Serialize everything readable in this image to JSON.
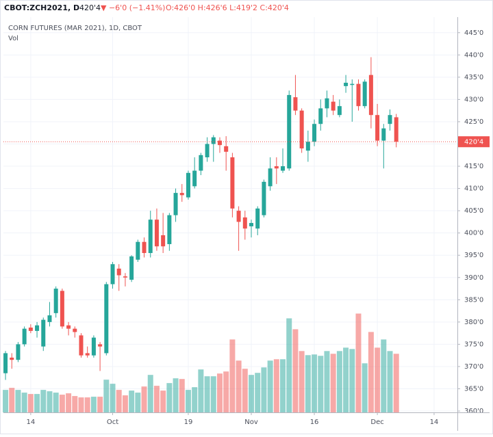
{
  "chart_data": {
    "type": "candlestick",
    "header": {
      "symbol": "CBOT:ZCH2021, D",
      "price": "420'4",
      "change": "▼ −6'0 (−1.41%)",
      "ohlc": "O:426'0 H:426'6 L:419'2 C:420'4"
    },
    "title": "CORN FUTURES (MAR 2021), 1D, CBOT",
    "volume_label": "Vol",
    "up_color": "#26a69a",
    "down_color": "#ef5350",
    "open": [
      368.5,
      372,
      371.5,
      375,
      378.75,
      378,
      374.5,
      380,
      382,
      387,
      379.25,
      378.5,
      377,
      373,
      372.5,
      375,
      373,
      388.5,
      392,
      390.25,
      389.5,
      394,
      398,
      395.5,
      403,
      399.5,
      397.5,
      404,
      409,
      408,
      410.5,
      414,
      417,
      420,
      420.75,
      419.5,
      417,
      405,
      403.5,
      401.5,
      401,
      404,
      410.5,
      415,
      414,
      414.5,
      430.5,
      427.5,
      418.5,
      420.5,
      424.5,
      428,
      429.5,
      426.5,
      433,
      433.25,
      433.5,
      428.5,
      435.5,
      426.5,
      420.75,
      424.5,
      426
    ],
    "high": [
      373.5,
      373,
      375.5,
      379,
      379.5,
      380,
      381,
      384.5,
      388,
      387.5,
      380,
      379,
      377.5,
      374.5,
      377,
      375.5,
      389,
      393.5,
      393,
      391,
      395,
      398.5,
      399,
      405,
      405.5,
      404.5,
      404.5,
      410,
      411,
      414,
      417,
      418,
      421.5,
      422,
      421.5,
      421.75,
      418,
      406,
      405,
      403,
      406,
      412,
      417,
      417,
      419,
      432,
      435.5,
      428,
      423,
      425.5,
      430,
      432,
      431,
      430,
      435.5,
      434.5,
      434.5,
      434.5,
      439.5,
      429,
      424.5,
      427.75,
      426.75
    ],
    "low": [
      367,
      369.5,
      371,
      374.5,
      377.5,
      376.5,
      373.5,
      379,
      381,
      378.5,
      377,
      376.5,
      372,
      372,
      372,
      369,
      372.5,
      387.5,
      387,
      388,
      389,
      393.5,
      394.5,
      394.5,
      396,
      395.5,
      396,
      402.5,
      407,
      407.5,
      410,
      413,
      416,
      416,
      418,
      414,
      403.5,
      396,
      398.5,
      399,
      399.5,
      403.5,
      409.5,
      411,
      413.5,
      414,
      426.5,
      418,
      416,
      419.5,
      423,
      426,
      426.5,
      426,
      431.5,
      425,
      427.5,
      428,
      423.5,
      419.5,
      414.5,
      423,
      419.25
    ],
    "close": [
      373,
      371.5,
      375,
      378.5,
      378,
      379.25,
      380.5,
      381.5,
      387.5,
      379,
      378.5,
      377.75,
      372.5,
      372.5,
      376.5,
      374.5,
      388.5,
      393,
      390.5,
      390,
      394.75,
      398,
      395.5,
      403,
      397,
      397,
      404,
      409,
      408.5,
      413.5,
      414,
      417.5,
      420,
      421.5,
      419.75,
      418.25,
      405.5,
      402.5,
      401,
      402.25,
      405.5,
      411.5,
      414.5,
      414.5,
      415,
      431,
      427.5,
      419,
      420.5,
      424.5,
      428,
      430.25,
      427.5,
      428.5,
      433.75,
      433.5,
      428.5,
      434,
      426.5,
      420.75,
      423.5,
      426.5,
      420.5
    ],
    "volume": [
      33,
      36,
      33,
      29,
      27,
      27,
      33,
      31,
      29,
      26,
      28,
      24,
      22,
      22,
      23,
      23,
      48,
      42,
      33,
      25,
      32,
      29,
      38,
      55,
      39,
      32,
      43,
      50,
      49,
      33,
      37,
      63,
      53,
      53,
      57,
      60,
      107,
      76,
      64,
      55,
      58,
      66,
      76,
      78,
      78,
      138,
      122,
      90,
      84,
      85,
      83,
      90,
      86,
      90,
      95,
      93,
      145,
      72,
      118,
      95,
      107,
      90,
      86
    ],
    "last_price": {
      "value": 420.5,
      "label": "420'4"
    },
    "xlim": [
      -0.33,
      71.7
    ],
    "xticks": [
      {
        "value": 4,
        "label": "14"
      },
      {
        "value": 17,
        "label": "Oct"
      },
      {
        "value": 29,
        "label": "19"
      },
      {
        "value": 39,
        "label": "Nov"
      },
      {
        "value": 49,
        "label": "16"
      },
      {
        "value": 59,
        "label": "Dec"
      },
      {
        "value": 68,
        "label": "14"
      }
    ],
    "ylim": [
      359.7,
      448.5
    ],
    "yticks": [
      {
        "value": 360,
        "label": "360'0"
      },
      {
        "value": 365,
        "label": "365'0"
      },
      {
        "value": 370,
        "label": "370'0"
      },
      {
        "value": 375,
        "label": "375'0"
      },
      {
        "value": 380,
        "label": "380'0"
      },
      {
        "value": 385,
        "label": "385'0"
      },
      {
        "value": 390,
        "label": "390'0"
      },
      {
        "value": 395,
        "label": "395'0"
      },
      {
        "value": 400,
        "label": "400'0"
      },
      {
        "value": 405,
        "label": "405'0"
      },
      {
        "value": 410,
        "label": "410'0"
      },
      {
        "value": 415,
        "label": "415'0"
      },
      {
        "value": 420,
        "label": "420'0"
      },
      {
        "value": 425,
        "label": "425'0"
      },
      {
        "value": 430,
        "label": "430'0"
      },
      {
        "value": 435,
        "label": "435'0"
      },
      {
        "value": 440,
        "label": "440'0"
      },
      {
        "value": 445,
        "label": "445'0"
      }
    ],
    "grid": true
  }
}
